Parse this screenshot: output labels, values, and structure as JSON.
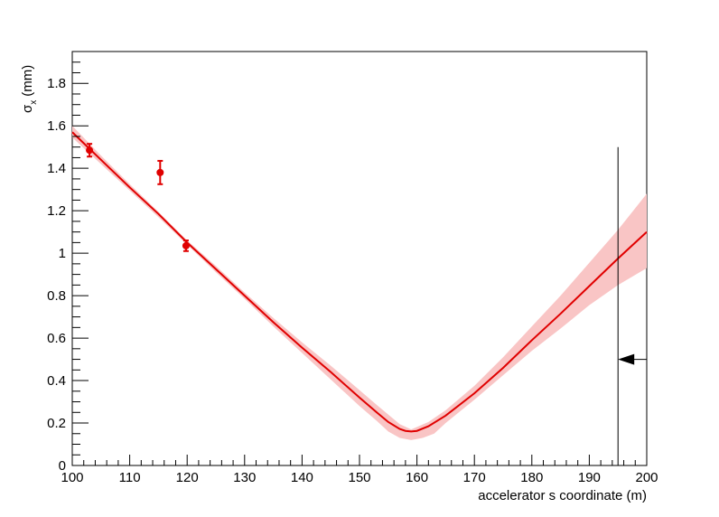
{
  "chart_data": {
    "type": "line",
    "title": "",
    "xlabel": "accelerator s coordinate (m)",
    "ylabel": {
      "symbol": "σ",
      "subscript": "x",
      "unit": "(mm)"
    },
    "xlim": [
      100,
      200
    ],
    "ylim": [
      0,
      1.95
    ],
    "x_ticks": [
      100,
      110,
      120,
      130,
      140,
      150,
      160,
      170,
      180,
      190,
      200
    ],
    "x_tick_labels": [
      "100",
      "110",
      "120",
      "130",
      "140",
      "150",
      "160",
      "170",
      "180",
      "190",
      "200"
    ],
    "y_ticks": [
      0,
      0.2,
      0.4,
      0.6,
      0.8,
      1.0,
      1.2,
      1.4,
      1.6,
      1.8
    ],
    "y_tick_labels": [
      "0",
      "0.2",
      "0.4",
      "0.6",
      "0.8",
      "1",
      "1.2",
      "1.4",
      "1.6",
      "1.8"
    ],
    "grid": false,
    "colors": {
      "fit": "#e00000",
      "band": "#f9c5c5",
      "points": "#e00000",
      "marker": "#000000"
    },
    "measurements": [
      {
        "x": 103,
        "y": 1.485,
        "err": 0.03
      },
      {
        "x": 115.3,
        "y": 1.38,
        "err": 0.055
      },
      {
        "x": 119.8,
        "y": 1.035,
        "err": 0.025
      }
    ],
    "fit_curve": [
      [
        100,
        1.57
      ],
      [
        105,
        1.44
      ],
      [
        110,
        1.31
      ],
      [
        115,
        1.185
      ],
      [
        120,
        1.05
      ],
      [
        125,
        0.925
      ],
      [
        130,
        0.8
      ],
      [
        135,
        0.675
      ],
      [
        140,
        0.555
      ],
      [
        145,
        0.44
      ],
      [
        150,
        0.32
      ],
      [
        153,
        0.25
      ],
      [
        155,
        0.205
      ],
      [
        157,
        0.172
      ],
      [
        158,
        0.163
      ],
      [
        159,
        0.16
      ],
      [
        160,
        0.163
      ],
      [
        162,
        0.185
      ],
      [
        165,
        0.235
      ],
      [
        170,
        0.34
      ],
      [
        175,
        0.46
      ],
      [
        180,
        0.59
      ],
      [
        185,
        0.715
      ],
      [
        190,
        0.845
      ],
      [
        195,
        0.975
      ],
      [
        200,
        1.1
      ]
    ],
    "band_upper": [
      [
        100,
        1.6
      ],
      [
        105,
        1.46
      ],
      [
        110,
        1.325
      ],
      [
        115,
        1.195
      ],
      [
        120,
        1.06
      ],
      [
        125,
        0.94
      ],
      [
        130,
        0.815
      ],
      [
        135,
        0.695
      ],
      [
        140,
        0.58
      ],
      [
        145,
        0.47
      ],
      [
        150,
        0.355
      ],
      [
        153,
        0.285
      ],
      [
        155,
        0.24
      ],
      [
        157,
        0.195
      ],
      [
        159,
        0.17
      ],
      [
        162,
        0.205
      ],
      [
        165,
        0.26
      ],
      [
        170,
        0.375
      ],
      [
        175,
        0.51
      ],
      [
        180,
        0.655
      ],
      [
        185,
        0.8
      ],
      [
        190,
        0.955
      ],
      [
        195,
        1.11
      ],
      [
        200,
        1.28
      ]
    ],
    "band_lower": [
      [
        100,
        1.545
      ],
      [
        105,
        1.42
      ],
      [
        110,
        1.295
      ],
      [
        115,
        1.17
      ],
      [
        120,
        1.04
      ],
      [
        125,
        0.91
      ],
      [
        130,
        0.785
      ],
      [
        135,
        0.655
      ],
      [
        140,
        0.53
      ],
      [
        145,
        0.405
      ],
      [
        150,
        0.28
      ],
      [
        153,
        0.21
      ],
      [
        155,
        0.16
      ],
      [
        157,
        0.13
      ],
      [
        159,
        0.12
      ],
      [
        161,
        0.13
      ],
      [
        163,
        0.15
      ],
      [
        165,
        0.2
      ],
      [
        170,
        0.31
      ],
      [
        175,
        0.425
      ],
      [
        180,
        0.54
      ],
      [
        185,
        0.645
      ],
      [
        190,
        0.755
      ],
      [
        195,
        0.85
      ],
      [
        200,
        0.93
      ]
    ],
    "vertical_line": {
      "x": 195,
      "y_top": 1.5
    },
    "arrow": {
      "x_from": 200,
      "x_to": 195,
      "y": 0.5
    }
  }
}
